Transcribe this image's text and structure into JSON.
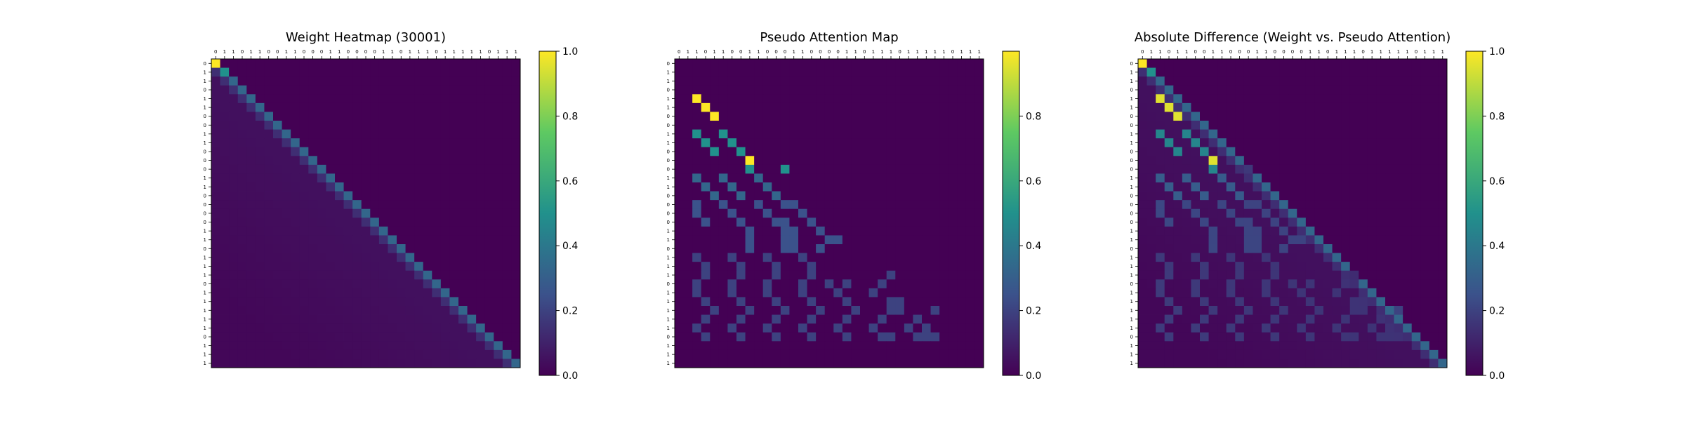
{
  "figure": {
    "colormap_stops": [
      "#440154",
      "#3b528b",
      "#21918c",
      "#5ec962",
      "#fde725"
    ],
    "frame_color": "#000000"
  },
  "chart_data": [
    {
      "type": "heatmap",
      "title": "Weight Heatmap (30001)",
      "xlabel": "",
      "ylabel": "",
      "tick_labels": [
        "0",
        "1",
        "1",
        "0",
        "1",
        "1",
        "0",
        "0",
        "1",
        "1",
        "0",
        "0",
        "0",
        "1",
        "1",
        "0",
        "0",
        "0",
        "0",
        "1",
        "1",
        "0",
        "1",
        "1",
        "1",
        "0",
        "1",
        "1",
        "1",
        "1",
        "1",
        "0",
        "1",
        "1",
        "1"
      ],
      "colorbar": {
        "min": 0.0,
        "max": 1.0,
        "ticks": [
          "0.0",
          "0.2",
          "0.4",
          "0.6",
          "0.8",
          "1.0"
        ],
        "tick_values": [
          0,
          0.2,
          0.4,
          0.6,
          0.8,
          1.0
        ]
      },
      "pattern": "lower-triangular decay: row 0 diagonal = 1.0, row 1 diagonal = 0.5, remaining diagonal ≈ 0.33, first sub-diagonal ≈ 0.14, lower triangle fades ≈ 0.05→0.02, upper triangle 0"
    },
    {
      "type": "heatmap",
      "title": "Pseudo Attention Map",
      "xlabel": "",
      "ylabel": "",
      "tick_labels": [
        "0",
        "1",
        "1",
        "0",
        "1",
        "1",
        "0",
        "0",
        "1",
        "1",
        "0",
        "0",
        "0",
        "1",
        "1",
        "0",
        "0",
        "0",
        "0",
        "1",
        "1",
        "0",
        "1",
        "1",
        "1",
        "0",
        "1",
        "1",
        "1",
        "1",
        "1",
        "0",
        "1",
        "1",
        "1"
      ],
      "colorbar": {
        "min": 0.0,
        "max": 1.0,
        "ticks": [
          "0.0",
          "0.2",
          "0.4",
          "0.6",
          "0.8"
        ],
        "tick_values": [
          0,
          0.2,
          0.4,
          0.6,
          0.8
        ]
      },
      "cells": [
        {
          "row": 4,
          "col": 2,
          "value": 1.0
        },
        {
          "row": 5,
          "col": 3,
          "value": 1.0
        },
        {
          "row": 6,
          "col": 4,
          "value": 1.0
        },
        {
          "row": 8,
          "col": 2,
          "value": 0.5
        },
        {
          "row": 8,
          "col": 5,
          "value": 0.5
        },
        {
          "row": 9,
          "col": 3,
          "value": 0.5
        },
        {
          "row": 9,
          "col": 6,
          "value": 0.5
        },
        {
          "row": 10,
          "col": 4,
          "value": 0.5
        },
        {
          "row": 10,
          "col": 7,
          "value": 0.5
        },
        {
          "row": 11,
          "col": 8,
          "value": 1.0
        },
        {
          "row": 12,
          "col": 8,
          "value": 0.5
        },
        {
          "row": 12,
          "col": 12,
          "value": 0.5
        },
        {
          "row": 13,
          "col": 2,
          "value": 0.33
        },
        {
          "row": 13,
          "col": 5,
          "value": 0.33
        },
        {
          "row": 13,
          "col": 9,
          "value": 0.33
        },
        {
          "row": 14,
          "col": 3,
          "value": 0.33
        },
        {
          "row": 14,
          "col": 6,
          "value": 0.33
        },
        {
          "row": 14,
          "col": 10,
          "value": 0.33
        },
        {
          "row": 15,
          "col": 4,
          "value": 0.33
        },
        {
          "row": 15,
          "col": 7,
          "value": 0.33
        },
        {
          "row": 15,
          "col": 11,
          "value": 0.33
        },
        {
          "row": 16,
          "col": 2,
          "value": 0.25
        },
        {
          "row": 16,
          "col": 5,
          "value": 0.25
        },
        {
          "row": 16,
          "col": 9,
          "value": 0.25
        },
        {
          "row": 16,
          "col": 12,
          "value": 0.25
        },
        {
          "row": 16,
          "col": 13,
          "value": 0.25
        },
        {
          "row": 17,
          "col": 2,
          "value": 0.25
        },
        {
          "row": 17,
          "col": 6,
          "value": 0.25
        },
        {
          "row": 17,
          "col": 10,
          "value": 0.25
        },
        {
          "row": 17,
          "col": 14,
          "value": 0.25
        },
        {
          "row": 18,
          "col": 3,
          "value": 0.25
        },
        {
          "row": 18,
          "col": 7,
          "value": 0.25
        },
        {
          "row": 18,
          "col": 11,
          "value": 0.25
        },
        {
          "row": 18,
          "col": 12,
          "value": 0.25
        },
        {
          "row": 18,
          "col": 15,
          "value": 0.25
        },
        {
          "row": 19,
          "col": 8,
          "value": 0.25
        },
        {
          "row": 19,
          "col": 12,
          "value": 0.25
        },
        {
          "row": 19,
          "col": 13,
          "value": 0.25
        },
        {
          "row": 19,
          "col": 16,
          "value": 0.25
        },
        {
          "row": 20,
          "col": 8,
          "value": 0.25
        },
        {
          "row": 20,
          "col": 12,
          "value": 0.25
        },
        {
          "row": 20,
          "col": 13,
          "value": 0.25
        },
        {
          "row": 20,
          "col": 17,
          "value": 0.25
        },
        {
          "row": 20,
          "col": 18,
          "value": 0.25
        },
        {
          "row": 21,
          "col": 8,
          "value": 0.25
        },
        {
          "row": 21,
          "col": 12,
          "value": 0.25
        },
        {
          "row": 21,
          "col": 13,
          "value": 0.25
        },
        {
          "row": 21,
          "col": 16,
          "value": 0.25
        },
        {
          "row": 22,
          "col": 2,
          "value": 0.2
        },
        {
          "row": 22,
          "col": 6,
          "value": 0.2
        },
        {
          "row": 22,
          "col": 10,
          "value": 0.2
        },
        {
          "row": 22,
          "col": 14,
          "value": 0.2
        },
        {
          "row": 23,
          "col": 3,
          "value": 0.2
        },
        {
          "row": 23,
          "col": 7,
          "value": 0.2
        },
        {
          "row": 23,
          "col": 11,
          "value": 0.2
        },
        {
          "row": 23,
          "col": 15,
          "value": 0.2
        },
        {
          "row": 24,
          "col": 3,
          "value": 0.2
        },
        {
          "row": 24,
          "col": 7,
          "value": 0.2
        },
        {
          "row": 24,
          "col": 11,
          "value": 0.2
        },
        {
          "row": 24,
          "col": 15,
          "value": 0.2
        },
        {
          "row": 24,
          "col": 24,
          "value": 0.2
        },
        {
          "row": 25,
          "col": 2,
          "value": 0.2
        },
        {
          "row": 25,
          "col": 6,
          "value": 0.2
        },
        {
          "row": 25,
          "col": 10,
          "value": 0.2
        },
        {
          "row": 25,
          "col": 14,
          "value": 0.2
        },
        {
          "row": 25,
          "col": 17,
          "value": 0.2
        },
        {
          "row": 25,
          "col": 19,
          "value": 0.2
        },
        {
          "row": 25,
          "col": 23,
          "value": 0.2
        },
        {
          "row": 26,
          "col": 2,
          "value": 0.2
        },
        {
          "row": 26,
          "col": 6,
          "value": 0.2
        },
        {
          "row": 26,
          "col": 10,
          "value": 0.2
        },
        {
          "row": 26,
          "col": 14,
          "value": 0.2
        },
        {
          "row": 26,
          "col": 18,
          "value": 0.2
        },
        {
          "row": 26,
          "col": 22,
          "value": 0.2
        },
        {
          "row": 27,
          "col": 3,
          "value": 0.2
        },
        {
          "row": 27,
          "col": 7,
          "value": 0.2
        },
        {
          "row": 27,
          "col": 11,
          "value": 0.2
        },
        {
          "row": 27,
          "col": 15,
          "value": 0.2
        },
        {
          "row": 27,
          "col": 19,
          "value": 0.2
        },
        {
          "row": 27,
          "col": 24,
          "value": 0.2
        },
        {
          "row": 27,
          "col": 25,
          "value": 0.2
        },
        {
          "row": 28,
          "col": 4,
          "value": 0.2
        },
        {
          "row": 28,
          "col": 8,
          "value": 0.2
        },
        {
          "row": 28,
          "col": 12,
          "value": 0.2
        },
        {
          "row": 28,
          "col": 16,
          "value": 0.2
        },
        {
          "row": 28,
          "col": 20,
          "value": 0.2
        },
        {
          "row": 28,
          "col": 24,
          "value": 0.2
        },
        {
          "row": 28,
          "col": 25,
          "value": 0.2
        },
        {
          "row": 28,
          "col": 29,
          "value": 0.2
        },
        {
          "row": 29,
          "col": 3,
          "value": 0.2
        },
        {
          "row": 29,
          "col": 7,
          "value": 0.2
        },
        {
          "row": 29,
          "col": 11,
          "value": 0.2
        },
        {
          "row": 29,
          "col": 15,
          "value": 0.2
        },
        {
          "row": 29,
          "col": 19,
          "value": 0.2
        },
        {
          "row": 29,
          "col": 23,
          "value": 0.2
        },
        {
          "row": 29,
          "col": 27,
          "value": 0.2
        },
        {
          "row": 30,
          "col": 2,
          "value": 0.2
        },
        {
          "row": 30,
          "col": 6,
          "value": 0.2
        },
        {
          "row": 30,
          "col": 10,
          "value": 0.2
        },
        {
          "row": 30,
          "col": 14,
          "value": 0.2
        },
        {
          "row": 30,
          "col": 18,
          "value": 0.2
        },
        {
          "row": 30,
          "col": 22,
          "value": 0.2
        },
        {
          "row": 30,
          "col": 26,
          "value": 0.2
        },
        {
          "row": 30,
          "col": 28,
          "value": 0.2
        },
        {
          "row": 31,
          "col": 3,
          "value": 0.2
        },
        {
          "row": 31,
          "col": 7,
          "value": 0.2
        },
        {
          "row": 31,
          "col": 11,
          "value": 0.2
        },
        {
          "row": 31,
          "col": 15,
          "value": 0.2
        },
        {
          "row": 31,
          "col": 19,
          "value": 0.2
        },
        {
          "row": 31,
          "col": 23,
          "value": 0.2
        },
        {
          "row": 31,
          "col": 24,
          "value": 0.2
        },
        {
          "row": 31,
          "col": 27,
          "value": 0.2
        },
        {
          "row": 31,
          "col": 28,
          "value": 0.2
        },
        {
          "row": 31,
          "col": 29,
          "value": 0.2
        }
      ]
    },
    {
      "type": "heatmap",
      "title": "Absolute Difference (Weight vs. Pseudo Attention)",
      "xlabel": "",
      "ylabel": "",
      "tick_labels": [
        "0",
        "1",
        "1",
        "0",
        "1",
        "1",
        "0",
        "0",
        "1",
        "1",
        "0",
        "0",
        "0",
        "1",
        "1",
        "0",
        "0",
        "0",
        "0",
        "1",
        "1",
        "0",
        "1",
        "1",
        "1",
        "0",
        "1",
        "1",
        "1",
        "1",
        "1",
        "0",
        "1",
        "1",
        "1"
      ],
      "colorbar": {
        "min": 0.0,
        "max": 1.0,
        "ticks": [
          "0.0",
          "0.2",
          "0.4",
          "0.6",
          "0.8",
          "1.0"
        ],
        "tick_values": [
          0,
          0.2,
          0.4,
          0.6,
          0.8,
          1.0
        ]
      },
      "pattern": "|weight − pseudo attention| per cell"
    }
  ]
}
